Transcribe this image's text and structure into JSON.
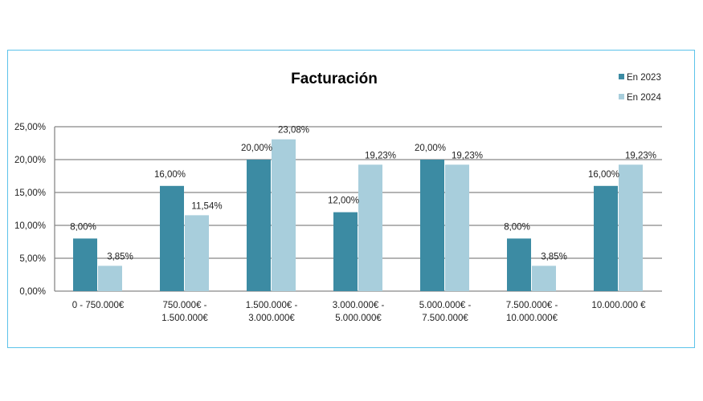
{
  "chart_data": {
    "type": "bar",
    "title": "Facturación",
    "xlabel": "",
    "ylabel": "",
    "ylim": [
      0,
      25
    ],
    "yticks": [
      "0,00%",
      "5,00%",
      "10,00%",
      "15,00%",
      "20,00%",
      "25,00%"
    ],
    "grid": true,
    "legend_position": "top-right",
    "categories": [
      [
        "0 - 750.000€"
      ],
      [
        "750.000€ -",
        "1.500.000€"
      ],
      [
        "1.500.000€ -",
        "3.000.000€"
      ],
      [
        "3.000.000€ -",
        "5.000.000€"
      ],
      [
        "5.000.000€ -",
        "7.500.000€"
      ],
      [
        "7.500.000€ -",
        "10.000.000€"
      ],
      [
        "10.000.000 €"
      ]
    ],
    "series": [
      {
        "name": "En 2023",
        "color": "#3c8ba3",
        "values": [
          8.0,
          16.0,
          20.0,
          12.0,
          20.0,
          8.0,
          16.0
        ],
        "labels": [
          "8,00%",
          "16,00%",
          "20,00%",
          "12,00%",
          "20,00%",
          "8,00%",
          "16,00%"
        ]
      },
      {
        "name": "En 2024",
        "color": "#a8cedc",
        "values": [
          3.85,
          11.54,
          23.08,
          19.23,
          19.23,
          3.85,
          19.23
        ],
        "labels": [
          "3,85%",
          "11,54%",
          "23,08%",
          "19,23%",
          "19,23%",
          "3,85%",
          "19,23%"
        ]
      }
    ]
  }
}
